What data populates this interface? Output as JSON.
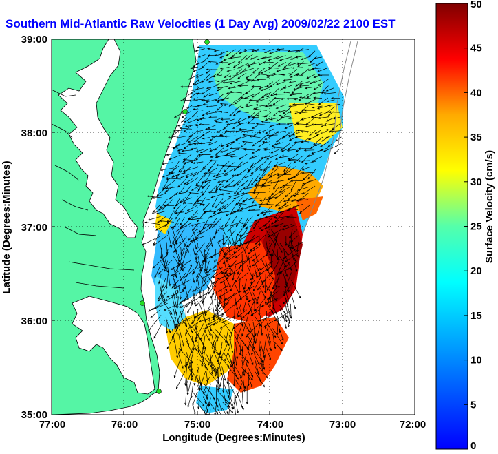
{
  "title": "Southern Mid-Atlantic Raw Velocities (1 Day Avg) 2009/02/22 2100 EST",
  "xlabel": "Longitude (Degrees:Minutes)",
  "ylabel": "Latitude (Degrees:Minutes)",
  "colorbar_label": "Surface Velocity (cm/s)",
  "x_ticks": [
    "77:00",
    "76:00",
    "75:00",
    "74:00",
    "73:00",
    "72:00"
  ],
  "y_ticks": [
    "39:00",
    "38:00",
    "37:00",
    "36:00",
    "35:00"
  ],
  "colorbar_ticks": [
    "0",
    "5",
    "10",
    "15",
    "20",
    "25",
    "30",
    "35",
    "40",
    "45",
    "50"
  ],
  "colors": {
    "land": "#55f5a5",
    "water": "#ffffff",
    "title_text": "#0000ff",
    "grid": "#000000",
    "vectors": "#000000",
    "station_marker": "#22dd22"
  },
  "colorbar_range": [
    0,
    50
  ],
  "colormap": "jet"
}
